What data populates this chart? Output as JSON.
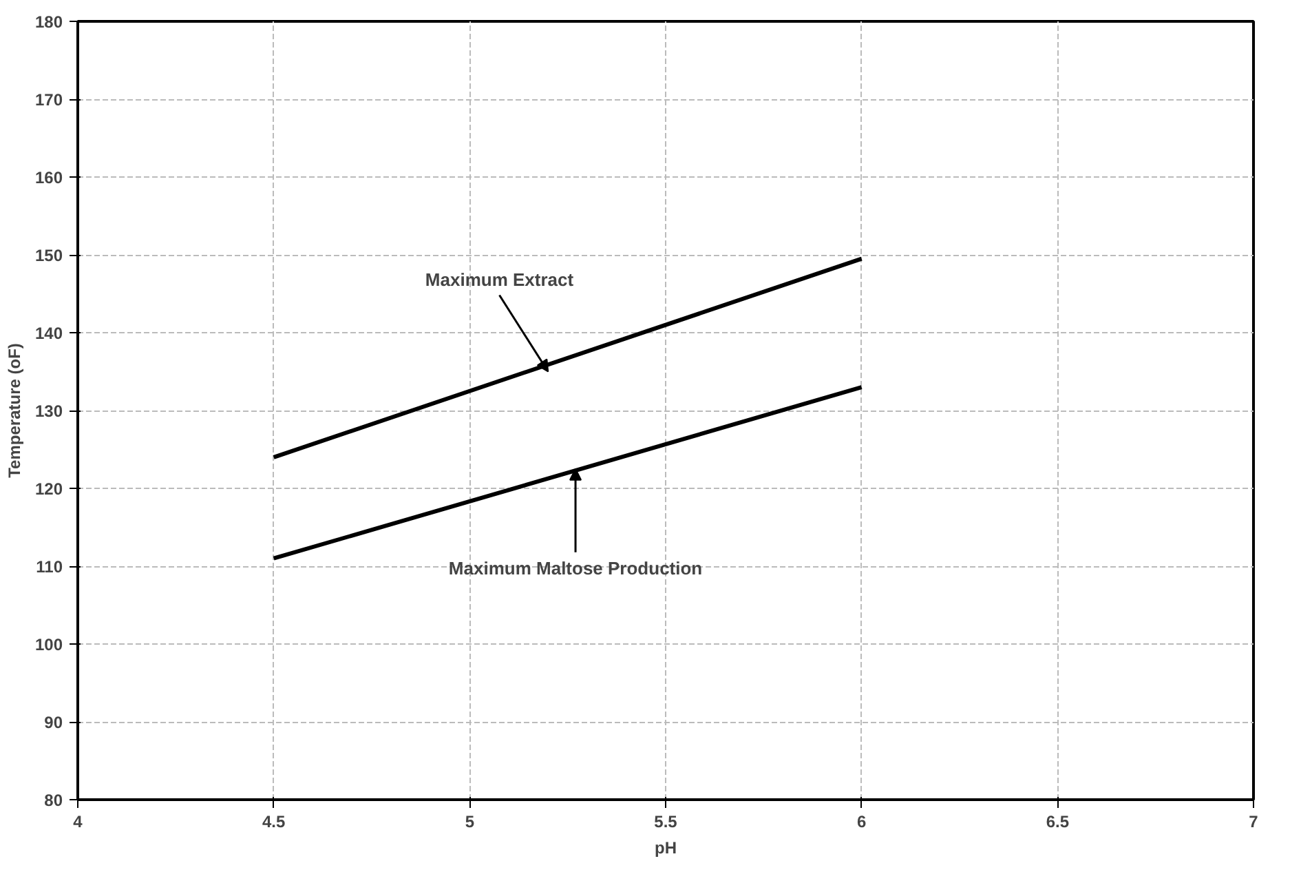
{
  "chart_data": {
    "type": "line",
    "xlabel": "pH",
    "ylabel": "Temperature (oF)",
    "xlim": [
      4,
      7
    ],
    "xticks": [
      4,
      4.5,
      5,
      5.5,
      6,
      6.5,
      7
    ],
    "ylim": [
      80,
      180
    ],
    "yticks": [
      80,
      90,
      100,
      110,
      120,
      130,
      140,
      150,
      160,
      170,
      180
    ],
    "x": [
      4.5,
      6
    ],
    "grid": true,
    "marker": "none",
    "line_style": "solid",
    "series": [
      {
        "color": "#000000",
        "values": [
          124,
          149.5
        ]
      },
      {
        "color": "#000000",
        "values": [
          111,
          133
        ]
      }
    ],
    "annotations": [
      {
        "text": "Maximum Extract",
        "x": 5.2,
        "y": 135
      },
      {
        "text": "Maximum Maltose Production",
        "x": 5.27,
        "y": 122.5
      }
    ]
  }
}
